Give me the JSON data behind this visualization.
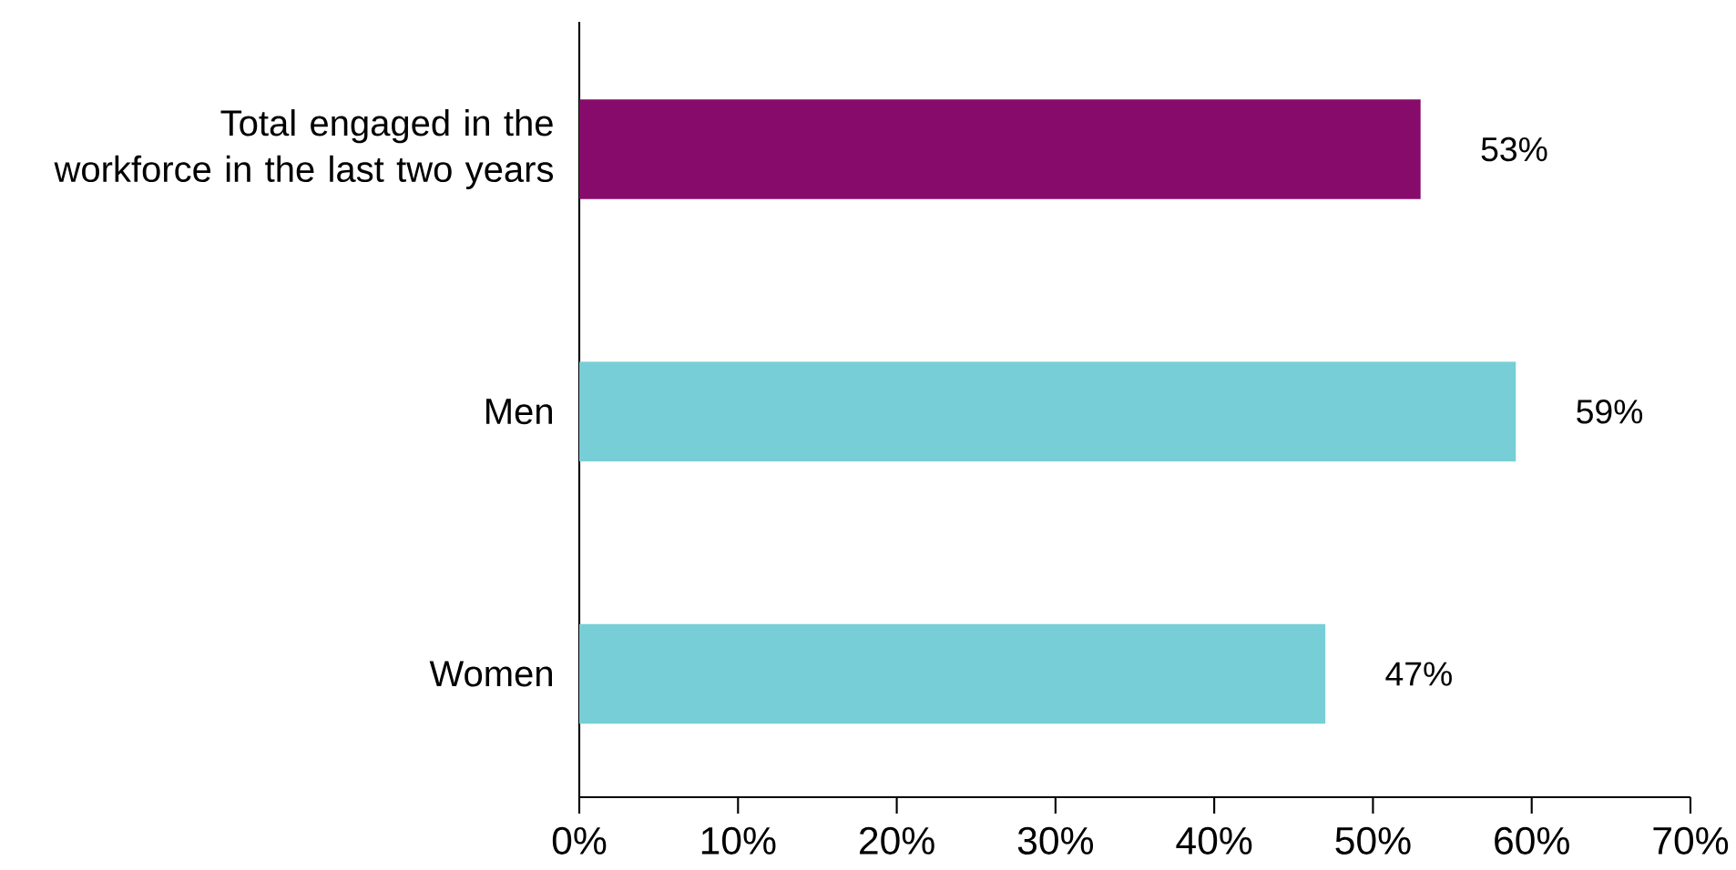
{
  "chart_data": {
    "type": "bar",
    "orientation": "horizontal",
    "categories": [
      "Total engaged in the workforce in the last two years",
      "Men",
      "Women"
    ],
    "values": [
      53,
      59,
      47
    ],
    "colors": [
      "#870b6b",
      "#77ced6",
      "#77ced6"
    ],
    "value_labels": [
      "53%",
      "59%",
      "47%"
    ],
    "xlim": [
      0,
      70
    ],
    "xticks": [
      {
        "value": 0,
        "label": "0%"
      },
      {
        "value": 10,
        "label": "10%"
      },
      {
        "value": 20,
        "label": "20%"
      },
      {
        "value": 30,
        "label": "30%"
      },
      {
        "value": 40,
        "label": "40%"
      },
      {
        "value": 50,
        "label": "50%"
      },
      {
        "value": 60,
        "label": "60%"
      },
      {
        "value": 70,
        "label": "70%"
      }
    ]
  }
}
